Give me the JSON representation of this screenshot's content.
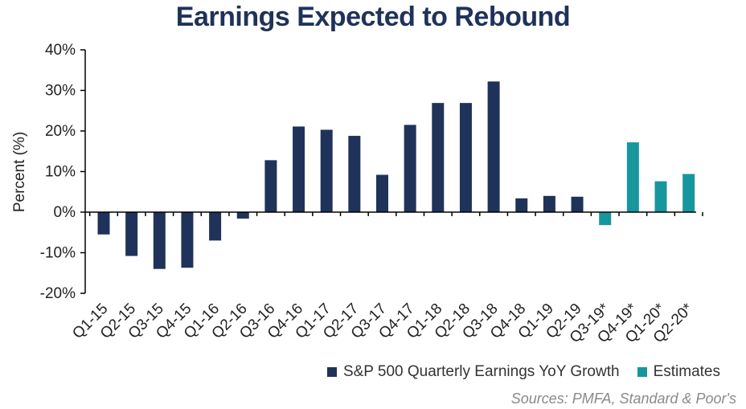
{
  "chart_data": {
    "type": "bar",
    "title": "Earnings Expected to Rebound",
    "ylabel": "Percent (%)",
    "xlabel": "",
    "ylim": [
      -20,
      40
    ],
    "yticks": [
      40,
      30,
      20,
      10,
      0,
      -10,
      -20
    ],
    "ytick_labels": [
      "40%",
      "30%",
      "20%",
      "10%",
      "0%",
      "-10%",
      "-20%"
    ],
    "categories": [
      "Q1-15",
      "Q2-15",
      "Q3-15",
      "Q4-15",
      "Q1-16",
      "Q2-16",
      "Q3-16",
      "Q4-16",
      "Q1-17",
      "Q2-17",
      "Q3-17",
      "Q4-17",
      "Q1-18",
      "Q2-18",
      "Q3-18",
      "Q4-18",
      "Q1-19",
      "Q2-19",
      "Q3-19*",
      "Q4-19*",
      "Q1-20*",
      "Q2-20*"
    ],
    "values": [
      -5.5,
      -10.8,
      -14.0,
      -13.7,
      -7.0,
      -1.6,
      12.8,
      21.1,
      20.3,
      18.8,
      9.2,
      21.5,
      26.9,
      26.9,
      32.2,
      3.4,
      4.0,
      3.8,
      -3.2,
      17.2,
      7.6,
      9.4
    ],
    "series": [
      {
        "name": "S&P 500 Quarterly Earnings YoY Growth",
        "color": "#1f3259",
        "indices": [
          0,
          1,
          2,
          3,
          4,
          5,
          6,
          7,
          8,
          9,
          10,
          11,
          12,
          13,
          14,
          15,
          16,
          17
        ]
      },
      {
        "name": "Estimates",
        "color": "#17969e",
        "indices": [
          18,
          19,
          20,
          21
        ]
      }
    ],
    "legend_position": "bottom-right",
    "grid": false
  },
  "legend": {
    "actual_label": "S&P 500 Quarterly Earnings YoY Growth",
    "estimate_label": "Estimates"
  },
  "source": "Sources: PMFA, Standard & Poor's",
  "colors": {
    "actual": "#1f3259",
    "estimate": "#17969e"
  }
}
